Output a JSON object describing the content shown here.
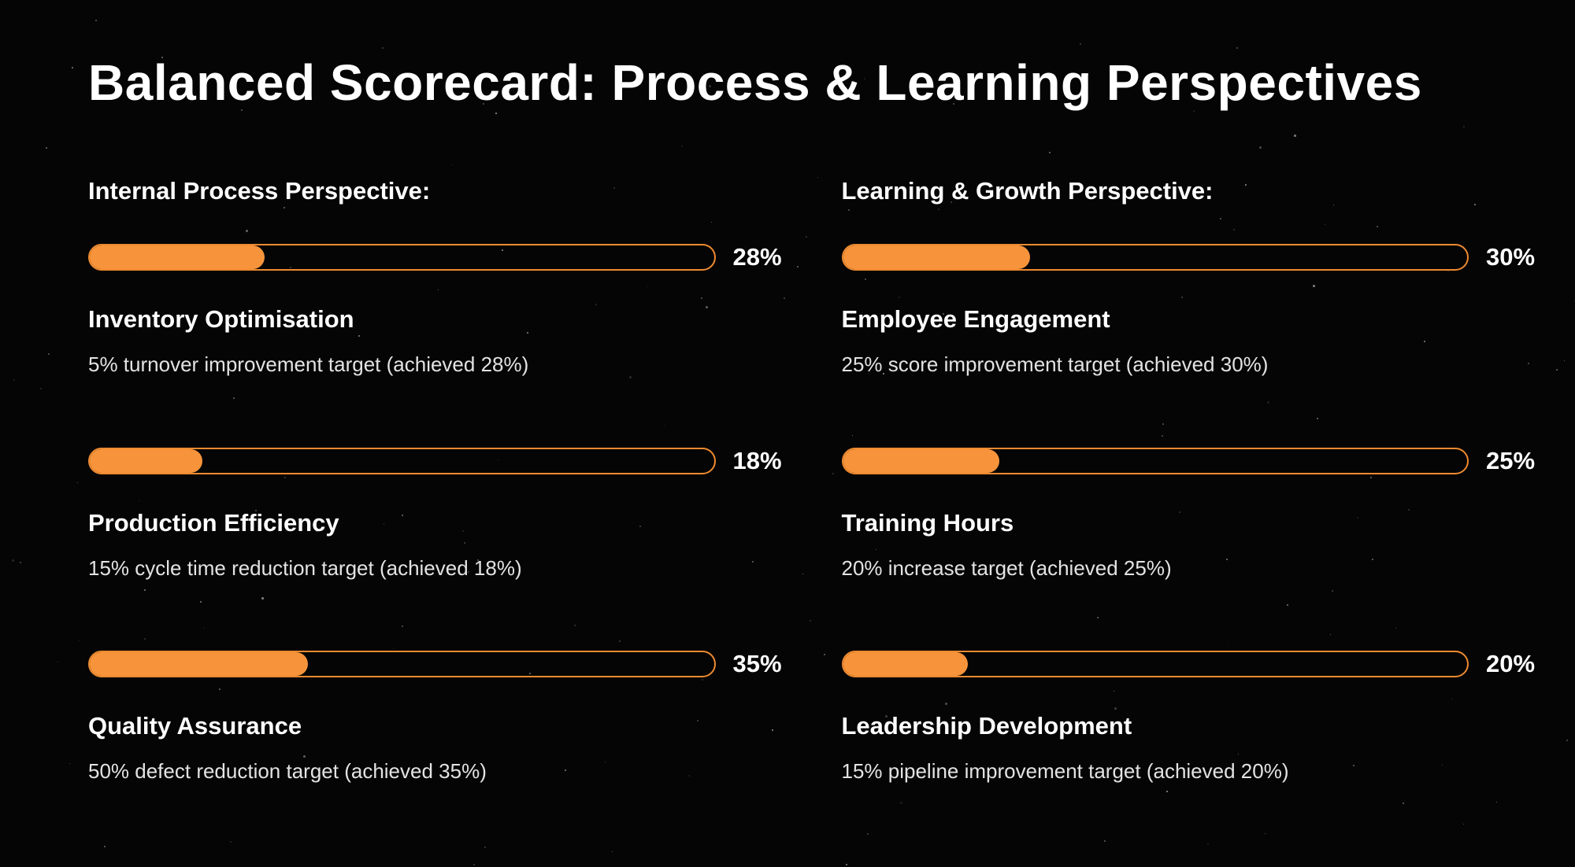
{
  "title": "Balanced Scorecard: Process & Learning Perspectives",
  "colors": {
    "background": "#050505",
    "accent_fill": "#f7943b",
    "accent_border": "#ee8a30",
    "text": "#ffffff",
    "muted_text": "#e3e3e3"
  },
  "columns": [
    {
      "header": "Internal Process Perspective:",
      "metrics": [
        {
          "name": "Inventory Optimisation",
          "percent": 28,
          "percent_label": "28%",
          "description": "5% turnover improvement target (achieved 28%)"
        },
        {
          "name": "Production Efficiency",
          "percent": 18,
          "percent_label": "18%",
          "description": "15% cycle time reduction target (achieved 18%)"
        },
        {
          "name": "Quality Assurance",
          "percent": 35,
          "percent_label": "35%",
          "description": "50% defect reduction target (achieved 35%)"
        }
      ]
    },
    {
      "header": "Learning & Growth Perspective:",
      "metrics": [
        {
          "name": "Employee Engagement",
          "percent": 30,
          "percent_label": "30%",
          "description": "25% score improvement target (achieved 30%)"
        },
        {
          "name": "Training Hours",
          "percent": 25,
          "percent_label": "25%",
          "description": "20% increase target (achieved 25%)"
        },
        {
          "name": "Leadership Development",
          "percent": 20,
          "percent_label": "20%",
          "description": "15% pipeline improvement target (achieved 20%)"
        }
      ]
    }
  ],
  "chart_data": {
    "type": "bar",
    "orientation": "horizontal",
    "title": "Balanced Scorecard: Process & Learning Perspectives",
    "xlim": [
      0,
      100
    ],
    "unit": "%",
    "series": [
      {
        "name": "Internal Process Perspective",
        "categories": [
          "Inventory Optimisation",
          "Production Efficiency",
          "Quality Assurance"
        ],
        "values": [
          28,
          18,
          35
        ],
        "annotations": [
          "5% turnover improvement target (achieved 28%)",
          "15% cycle time reduction target (achieved 18%)",
          "50% defect reduction target (achieved 35%)"
        ]
      },
      {
        "name": "Learning & Growth Perspective",
        "categories": [
          "Employee Engagement",
          "Training Hours",
          "Leadership Development"
        ],
        "values": [
          30,
          25,
          20
        ],
        "annotations": [
          "25% score improvement target (achieved 30%)",
          "20% increase target (achieved 25%)",
          "15% pipeline improvement target (achieved 20%)"
        ]
      }
    ]
  }
}
